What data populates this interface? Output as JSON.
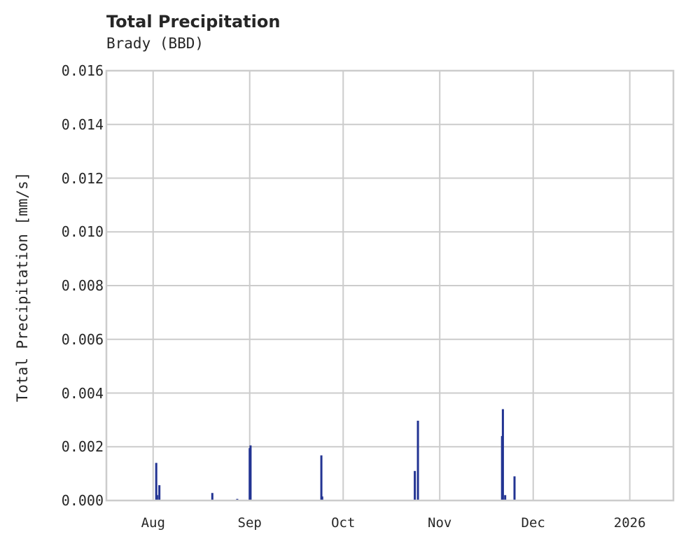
{
  "header": {
    "title": "Total Precipitation",
    "subtitle": "Brady (BBD)"
  },
  "axes": {
    "ylabel": "Total Precipitation [mm/s]",
    "yticks": [
      "0.000",
      "0.002",
      "0.004",
      "0.006",
      "0.008",
      "0.010",
      "0.012",
      "0.014",
      "0.016"
    ],
    "xticks": [
      "Aug",
      "Sep",
      "Oct",
      "Nov",
      "Dec",
      "2026"
    ]
  },
  "colors": {
    "series": "#233493",
    "grid": "#cccccc",
    "text": "#262626"
  },
  "chart_data": {
    "type": "bar",
    "title": "Total Precipitation",
    "subtitle": "Brady (BBD)",
    "xlabel": "",
    "ylabel": "Total Precipitation [mm/s]",
    "ylim": [
      0,
      0.016
    ],
    "xlim": [
      "2025-07-17",
      "2026-01-15"
    ],
    "grid": true,
    "legend": null,
    "x_tick_labels": [
      "Aug",
      "Sep",
      "Oct",
      "Nov",
      "Dec",
      "2026"
    ],
    "y_tick_labels": [
      "0.000",
      "0.002",
      "0.004",
      "0.006",
      "0.008",
      "0.010",
      "0.012",
      "0.014",
      "0.016"
    ],
    "series": [
      {
        "name": "Total Precipitation",
        "x": [
          "2025-08-02",
          "2025-08-02",
          "2025-08-03",
          "2025-08-20",
          "2025-08-28",
          "2025-09-01",
          "2025-09-01",
          "2025-09-24",
          "2025-09-24",
          "2025-10-24",
          "2025-10-25",
          "2025-11-21",
          "2025-11-21",
          "2025-11-22",
          "2025-11-25"
        ],
        "values": [
          0.0014,
          0.0002,
          0.00057,
          0.00028,
          6e-05,
          0.00195,
          0.00205,
          0.00168,
          0.00015,
          0.0011,
          0.00297,
          0.0024,
          0.0034,
          0.0002,
          0.0009
        ]
      }
    ]
  }
}
